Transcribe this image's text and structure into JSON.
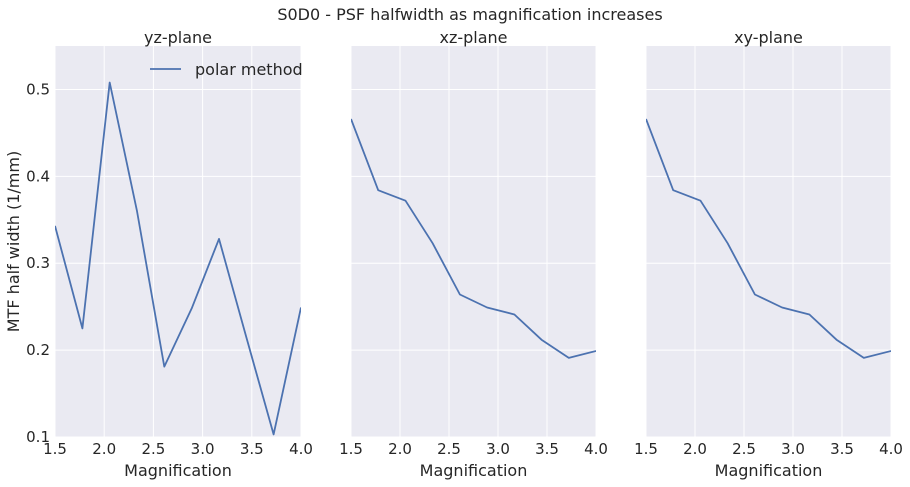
{
  "figure": {
    "title": "S0D0 - PSF halfwidth as magnification increases"
  },
  "chart_data": [
    {
      "type": "line",
      "title": "yz-plane",
      "xlabel": "Magnification",
      "ylabel": "MTF half width (1/mm)",
      "xlim": [
        1.5,
        4.0
      ],
      "ylim": [
        0.1,
        0.55
      ],
      "xticks": [
        "1.5",
        "2.0",
        "2.5",
        "3.0",
        "3.5",
        "4.0"
      ],
      "yticks": [
        "0.1",
        "0.2",
        "0.3",
        "0.4",
        "0.5"
      ],
      "legend": {
        "position": "top-right",
        "entries": [
          "polar method"
        ]
      },
      "series": [
        {
          "name": "polar method",
          "color": "#4c72b0",
          "x": [
            1.5,
            1.778,
            2.056,
            2.333,
            2.611,
            2.889,
            3.167,
            3.444,
            3.722,
            4.0
          ],
          "y": [
            0.343,
            0.225,
            0.508,
            0.36,
            0.181,
            0.248,
            0.328,
            0.215,
            0.103,
            0.249
          ]
        }
      ]
    },
    {
      "type": "line",
      "title": "xz-plane",
      "xlabel": "Magnification",
      "xlim": [
        1.5,
        4.0
      ],
      "ylim": [
        0.1,
        0.55
      ],
      "xticks": [
        "1.5",
        "2.0",
        "2.5",
        "3.0",
        "3.5",
        "4.0"
      ],
      "series": [
        {
          "color": "#4c72b0",
          "x": [
            1.5,
            1.778,
            2.056,
            2.333,
            2.611,
            2.889,
            3.167,
            3.444,
            3.722,
            4.0
          ],
          "y": [
            0.466,
            0.384,
            0.372,
            0.323,
            0.264,
            0.249,
            0.241,
            0.212,
            0.191,
            0.199
          ]
        }
      ]
    },
    {
      "type": "line",
      "title": "xy-plane",
      "xlabel": "Magnification",
      "xlim": [
        1.5,
        4.0
      ],
      "ylim": [
        0.1,
        0.55
      ],
      "xticks": [
        "1.5",
        "2.0",
        "2.5",
        "3.0",
        "3.5",
        "4.0"
      ],
      "series": [
        {
          "color": "#4c72b0",
          "x": [
            1.5,
            1.778,
            2.056,
            2.333,
            2.611,
            2.889,
            3.167,
            3.444,
            3.722,
            4.0
          ],
          "y": [
            0.466,
            0.384,
            0.372,
            0.323,
            0.264,
            0.249,
            0.241,
            0.212,
            0.191,
            0.199
          ]
        }
      ]
    }
  ]
}
